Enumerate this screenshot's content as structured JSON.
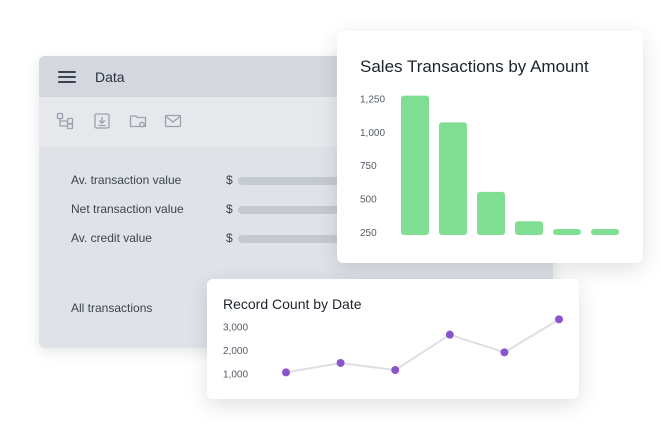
{
  "data_panel": {
    "title": "Data",
    "toolbar_icons": [
      "hierarchy-icon",
      "download-icon",
      "folder-settings-icon",
      "mail-icon"
    ],
    "rows": [
      {
        "label": "Av. transaction value",
        "currency": "$"
      },
      {
        "label": "Net transaction value",
        "currency": "$"
      },
      {
        "label": "Av. credit value",
        "currency": "$"
      }
    ],
    "footer_label": "All transactions"
  },
  "colors": {
    "bar": "#7fde92",
    "line": "#dcdfe4",
    "point": "#8a55cc"
  },
  "chart_data": [
    {
      "type": "bar",
      "title": "Sales Transactions by Amount",
      "categories": [
        "",
        "",
        "",
        "",
        "",
        ""
      ],
      "values": [
        1300,
        1100,
        580,
        360,
        230,
        300
      ],
      "ylim": [
        250,
        1350
      ],
      "yticks": [
        250,
        500,
        750,
        1000,
        1250
      ],
      "ytick_labels": [
        "250",
        "500",
        "750",
        "1,000",
        "1,250"
      ],
      "xlabel": "",
      "ylabel": ""
    },
    {
      "type": "line",
      "title": "Record Count by Date",
      "x": [
        1,
        2,
        3,
        4,
        5,
        6
      ],
      "y": [
        1050,
        1450,
        1150,
        2650,
        1900,
        3300
      ],
      "ylim": [
        600,
        3400
      ],
      "yticks": [
        1000,
        2000,
        3000
      ],
      "ytick_labels": [
        "1,000",
        "2,000",
        "3,000"
      ],
      "xlabel": "",
      "ylabel": ""
    }
  ]
}
